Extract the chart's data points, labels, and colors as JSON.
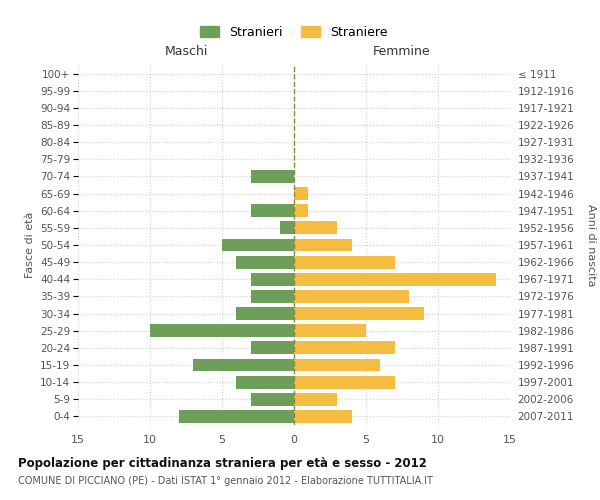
{
  "age_groups_bottom_to_top": [
    "0-4",
    "5-9",
    "10-14",
    "15-19",
    "20-24",
    "25-29",
    "30-34",
    "35-39",
    "40-44",
    "45-49",
    "50-54",
    "55-59",
    "60-64",
    "65-69",
    "70-74",
    "75-79",
    "80-84",
    "85-89",
    "90-94",
    "95-99",
    "100+"
  ],
  "birth_years_bottom_to_top": [
    "2007-2011",
    "2002-2006",
    "1997-2001",
    "1992-1996",
    "1987-1991",
    "1982-1986",
    "1977-1981",
    "1972-1976",
    "1967-1971",
    "1962-1966",
    "1957-1961",
    "1952-1956",
    "1947-1951",
    "1942-1946",
    "1937-1941",
    "1932-1936",
    "1927-1931",
    "1922-1926",
    "1917-1921",
    "1912-1916",
    "≤ 1911"
  ],
  "maschi_bottom_to_top": [
    8,
    3,
    4,
    7,
    3,
    10,
    4,
    3,
    3,
    4,
    5,
    1,
    3,
    0,
    3,
    0,
    0,
    0,
    0,
    0,
    0
  ],
  "femmine_bottom_to_top": [
    4,
    3,
    7,
    6,
    7,
    5,
    9,
    8,
    14,
    7,
    4,
    3,
    1,
    1,
    0,
    0,
    0,
    0,
    0,
    0,
    0
  ],
  "maschi_color": "#6d9e5a",
  "femmine_color": "#f5bc42",
  "title": "Popolazione per cittadinanza straniera per età e sesso - 2012",
  "subtitle": "COMUNE DI PICCIANO (PE) - Dati ISTAT 1° gennaio 2012 - Elaborazione TUTTITALIA.IT",
  "label_maschi": "Maschi",
  "label_femmine": "Femmine",
  "ylabel_left": "Fasce di età",
  "ylabel_right": "Anni di nascita",
  "legend_stranieri": "Stranieri",
  "legend_straniere": "Straniere",
  "xlim": 15,
  "background_color": "#ffffff",
  "grid_color": "#d0d0d0"
}
